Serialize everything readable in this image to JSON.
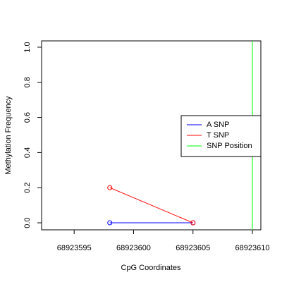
{
  "chart_data": {
    "type": "line",
    "x_label": "CpG Coordinates",
    "y_label": "Methylation Frequency",
    "xlim": [
      68923592.26,
      68923610.71
    ],
    "ylim": [
      -0.04,
      1.036
    ],
    "xticks": [
      68923595,
      68923600,
      68923605,
      68923610
    ],
    "yticks": [
      {
        "value": 0,
        "label": "0.0"
      },
      0.2,
      0.4,
      0.6,
      0.8,
      {
        "value": 1,
        "label": "1.0"
      }
    ],
    "series": [
      {
        "name": "A SNP",
        "color": "#0000ff",
        "x": [
          68923598,
          68923605
        ],
        "values": [
          0,
          0
        ]
      },
      {
        "name": "T SNP",
        "color": "#ff0000",
        "x": [
          68923598,
          68923605
        ],
        "values": [
          0.2,
          0
        ]
      }
    ],
    "vlines": [
      {
        "name": "SNP Position",
        "color": "#00ff00",
        "x": 68923610
      }
    ],
    "legend": "right"
  }
}
